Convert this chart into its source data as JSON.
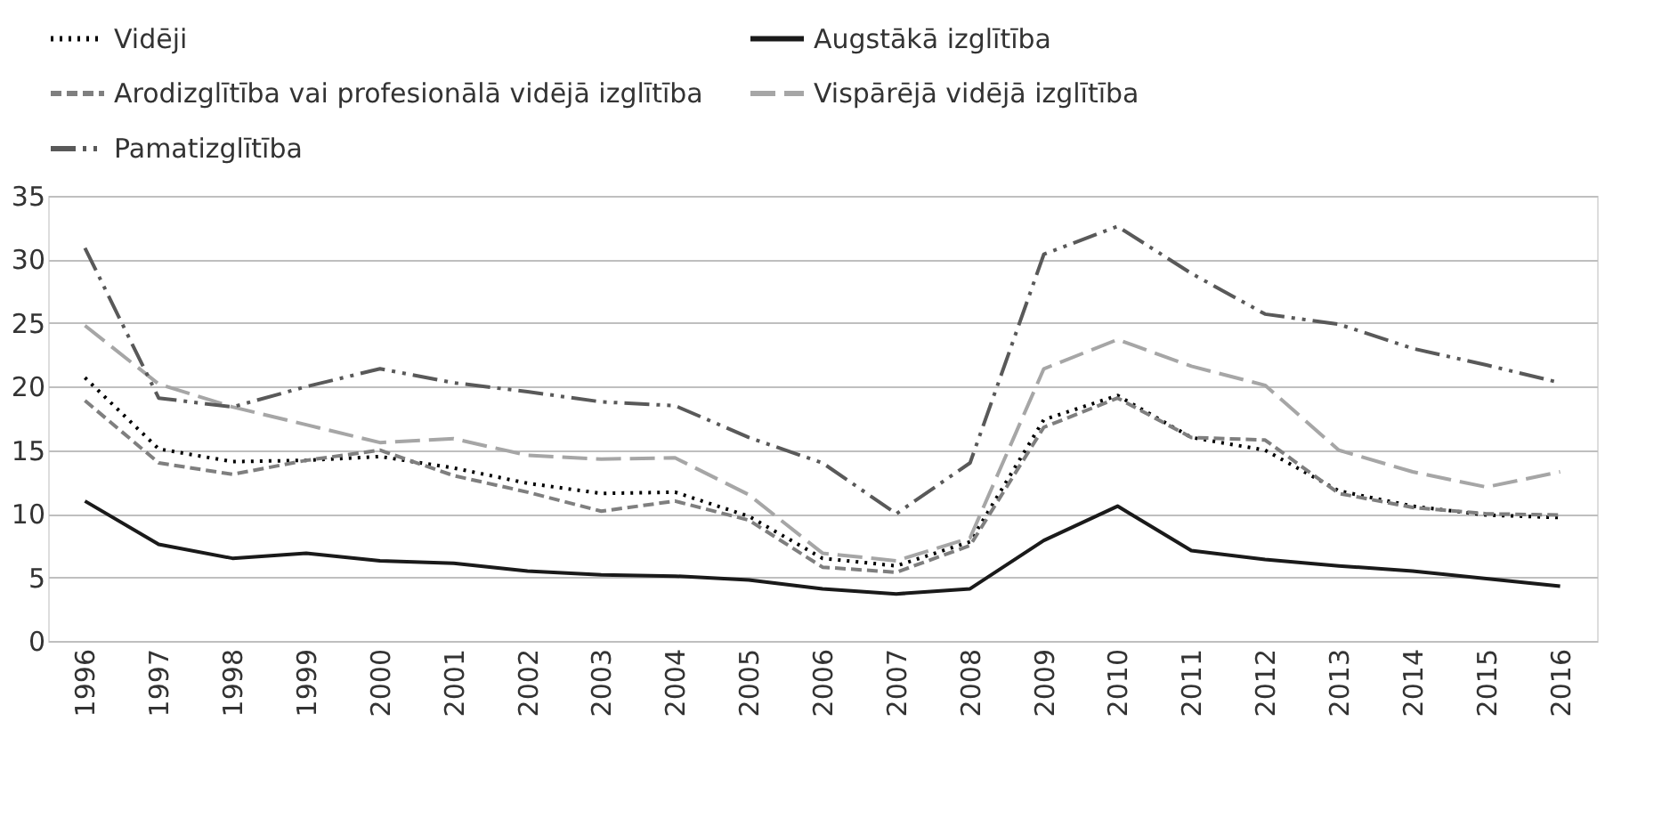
{
  "chart_data": {
    "type": "line",
    "categories": [
      "1996",
      "1997",
      "1998",
      "1999",
      "2000",
      "2001",
      "2002",
      "2003",
      "2004",
      "2005",
      "2006",
      "2007",
      "2008",
      "2009",
      "2010",
      "2011",
      "2012",
      "2013",
      "2014",
      "2015",
      "2016"
    ],
    "ylim": [
      0,
      35
    ],
    "yticks": [
      0,
      5,
      10,
      15,
      20,
      25,
      30,
      35
    ],
    "grid": "y",
    "legend": "top",
    "marker": "none",
    "series": [
      {
        "name": "Vidēji",
        "color": "#000000",
        "line_style": "dotted",
        "values": [
          20.7,
          15.1,
          14.1,
          14.2,
          14.5,
          13.6,
          12.4,
          11.6,
          11.7,
          9.8,
          6.5,
          5.9,
          7.8,
          17.4,
          19.3,
          16.0,
          15.0,
          11.8,
          10.6,
          9.9,
          9.7
        ]
      },
      {
        "name": "Augstākā izglītība",
        "color": "#1a1a1a",
        "line_style": "solid",
        "values": [
          11.0,
          7.6,
          6.5,
          6.9,
          6.3,
          6.1,
          5.5,
          5.2,
          5.1,
          4.8,
          4.1,
          3.7,
          4.1,
          7.9,
          10.6,
          7.1,
          6.4,
          5.9,
          5.5,
          4.9,
          4.3
        ]
      },
      {
        "name": "Arodizglītība vai profesionālā vidējā izglītība",
        "color": "#7f7f7f",
        "line_style": "dashed",
        "values": [
          18.9,
          14.0,
          13.1,
          14.2,
          15.0,
          13.0,
          11.7,
          10.2,
          11.0,
          9.5,
          5.8,
          5.4,
          7.5,
          16.8,
          19.1,
          16.0,
          15.8,
          11.6,
          10.5,
          10.0,
          9.9
        ]
      },
      {
        "name": "Vispārējā vidējā izglītība",
        "color": "#a6a6a6",
        "line_style": "dashed",
        "values": [
          24.8,
          20.2,
          18.4,
          17.0,
          15.6,
          15.9,
          14.6,
          14.3,
          14.4,
          11.5,
          6.9,
          6.3,
          8.1,
          21.4,
          23.7,
          21.6,
          20.1,
          15.0,
          13.3,
          12.1,
          13.3
        ]
      },
      {
        "name": "Pamatizglītība",
        "color": "#595959",
        "line_style": "dashed",
        "values": [
          30.9,
          19.1,
          18.4,
          20.0,
          21.4,
          20.3,
          19.6,
          18.8,
          18.5,
          16.0,
          14.0,
          10.0,
          14.0,
          30.4,
          32.6,
          28.9,
          25.7,
          24.9,
          23.0,
          21.7,
          20.3
        ]
      }
    ]
  }
}
